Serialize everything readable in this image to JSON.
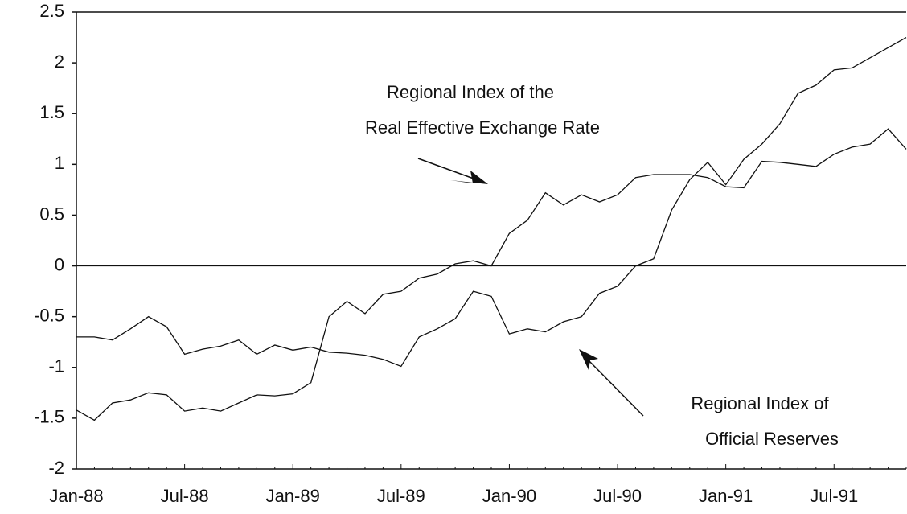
{
  "chart_data": {
    "type": "line",
    "categories": [
      "Jan-88",
      null,
      null,
      null,
      null,
      null,
      "Jul-88",
      null,
      null,
      null,
      null,
      null,
      "Jan-89",
      null,
      null,
      null,
      null,
      null,
      "Jul-89",
      null,
      null,
      null,
      null,
      null,
      "Jan-90",
      null,
      null,
      null,
      null,
      null,
      "Jul-90",
      null,
      null,
      null,
      null,
      null,
      "Jan-91",
      null,
      null,
      null,
      null,
      null,
      "Jul-91",
      null,
      null,
      null,
      null
    ],
    "series": [
      {
        "color": "#111111",
        "values": [
          -0.7,
          -0.7,
          -0.73,
          -0.62,
          -0.5,
          -0.6,
          -0.87,
          -0.82,
          -0.79,
          -0.73,
          -0.87,
          -0.78,
          -0.83,
          -0.8,
          -0.85,
          -0.86,
          -0.88,
          -0.92,
          -0.99,
          -0.7,
          -0.62,
          -0.52,
          -0.25,
          -0.3,
          -0.67,
          -0.62,
          -0.65,
          -0.55,
          -0.5,
          -0.27,
          -0.2,
          0.0,
          0.07,
          0.55,
          0.85,
          1.02,
          0.8,
          1.05,
          1.2,
          1.4,
          1.7,
          1.78,
          1.93,
          1.95,
          2.05,
          2.15,
          2.25
        ]
      },
      {
        "color": "#111111",
        "values": [
          -1.42,
          -1.52,
          -1.35,
          -1.32,
          -1.25,
          -1.27,
          -1.43,
          -1.4,
          -1.43,
          -1.35,
          -1.27,
          -1.28,
          -1.26,
          -1.15,
          -0.5,
          -0.35,
          -0.47,
          -0.28,
          -0.25,
          -0.12,
          -0.08,
          0.02,
          0.05,
          0.0,
          0.32,
          0.45,
          0.72,
          0.6,
          0.7,
          0.63,
          0.7,
          0.87,
          0.9,
          0.9,
          0.9,
          0.87,
          0.78,
          0.77,
          1.03,
          1.02,
          1.0,
          0.98,
          1.1,
          1.17,
          1.2,
          1.35,
          1.15
        ]
      }
    ],
    "annotations": [
      "Regional Index of the",
      "Real Effective Exchange Rate",
      "Regional Index of",
      "Official Reserves"
    ],
    "ylim": [
      -2,
      2.5
    ],
    "yticks": [
      -2,
      -1.5,
      -1,
      -0.5,
      0,
      0.5,
      1,
      1.5,
      2,
      2.5
    ],
    "grid": false
  }
}
